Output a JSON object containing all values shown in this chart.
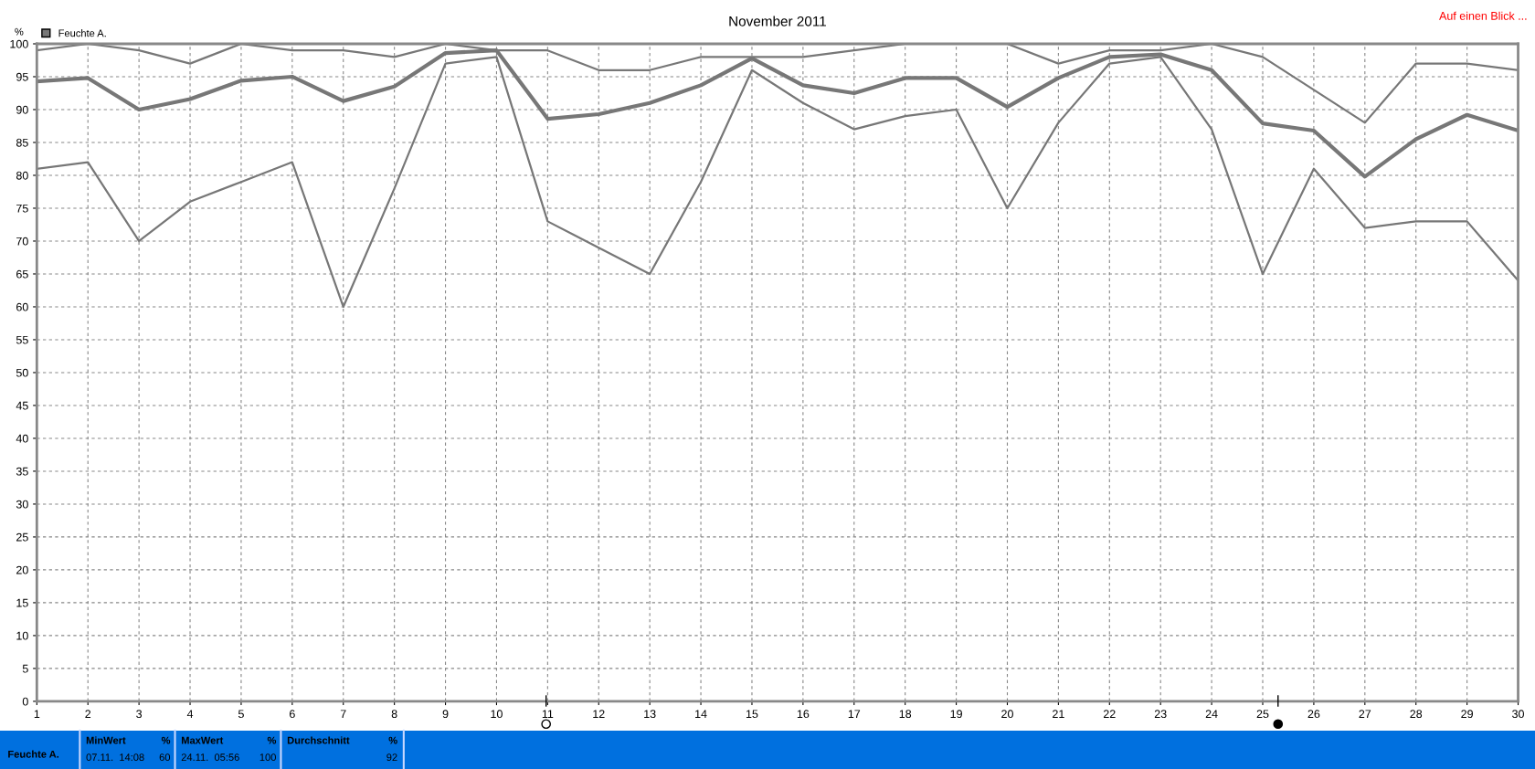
{
  "chart_data": {
    "type": "line",
    "title": "November 2011",
    "ylabel": "%",
    "x": [
      1,
      2,
      3,
      4,
      5,
      6,
      7,
      8,
      9,
      10,
      11,
      12,
      13,
      14,
      15,
      16,
      17,
      18,
      19,
      20,
      21,
      22,
      23,
      24,
      25,
      26,
      27,
      28,
      29,
      30
    ],
    "series": [
      {
        "color": "#777777",
        "values": [
          99,
          100,
          99,
          97,
          100,
          99,
          99,
          98,
          100,
          99,
          99,
          96,
          96,
          98,
          98,
          98,
          99,
          100,
          100,
          100,
          97,
          99,
          99,
          100,
          98,
          93,
          88,
          97,
          97,
          96
        ]
      },
      {
        "name": "Feuchte A.",
        "color": "#777777",
        "values": [
          94.3,
          94.8,
          90,
          91.6,
          94.4,
          95,
          91.3,
          93.5,
          98.6,
          99,
          88.6,
          89.3,
          91,
          93.7,
          97.8,
          93.7,
          92.5,
          94.8,
          94.8,
          90.4,
          94.8,
          98,
          98.4,
          96,
          87.9,
          86.8,
          79.8,
          85.5,
          89.2,
          86.8
        ]
      },
      {
        "color": "#777777",
        "values": [
          81,
          82,
          70,
          76,
          79,
          82,
          60,
          78,
          97,
          98,
          73,
          69,
          65,
          79,
          96,
          91,
          87,
          89,
          90,
          75,
          88,
          97,
          98,
          87,
          65,
          81,
          72,
          73,
          73,
          64
        ]
      }
    ],
    "xlim": [
      1,
      30
    ],
    "xticks": [
      1,
      2,
      3,
      4,
      5,
      6,
      7,
      8,
      9,
      10,
      11,
      12,
      13,
      14,
      15,
      16,
      17,
      18,
      19,
      20,
      21,
      22,
      23,
      24,
      25,
      26,
      27,
      28,
      29,
      30
    ],
    "ylim": [
      0,
      100
    ],
    "yticks": [
      0,
      5,
      10,
      15,
      20,
      25,
      30,
      35,
      40,
      45,
      50,
      55,
      60,
      65,
      70,
      75,
      80,
      85,
      90,
      95,
      100
    ],
    "grid": true,
    "legend": "top left",
    "marker": "none",
    "line_style": "solid",
    "annotations": [
      "Auf einen Blick ...",
      "Feuchte A.",
      "MinWert",
      "%",
      "07.11.  14:08",
      "60",
      "MaxWert",
      "%",
      "24.11.  05:56",
      "100",
      "Durchschnitt",
      "%",
      "92"
    ]
  }
}
